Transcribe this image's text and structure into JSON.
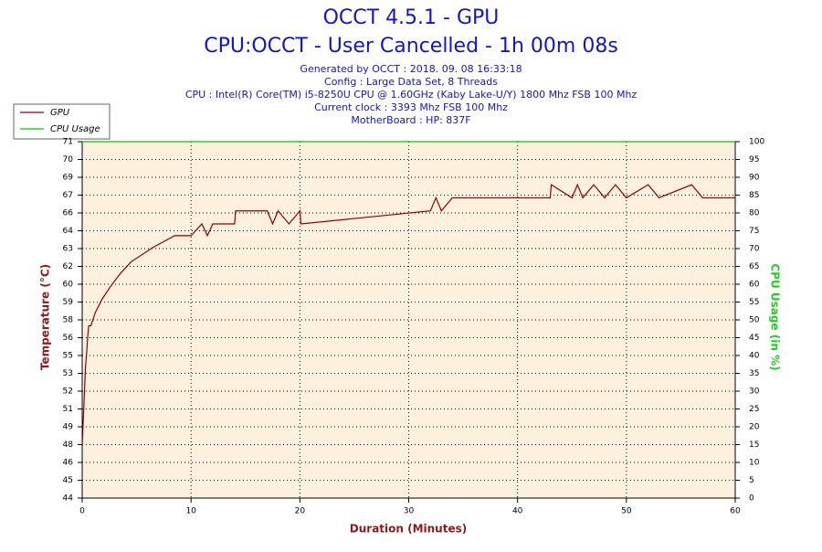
{
  "chart_data": {
    "type": "line",
    "title": "OCCT 4.5.1 - GPU",
    "subtitle": "CPU:OCCT - User Cancelled - 1h 00m 08s",
    "info": [
      "Generated by OCCT : 2018. 09. 08 16:33:18",
      "Config : Large Data Set, 8 Threads",
      "CPU : Intel(R) Core(TM) i5-8250U CPU @ 1.60GHz (Kaby Lake-U/Y) 1800 Mhz FSB 100 Mhz",
      "Current clock : 3393 Mhz FSB 100 Mhz",
      "MotherBoard : HP: 837F"
    ],
    "x_label": "Duration (Minutes)",
    "y_label": "Temperature (°C)",
    "y2_label": "CPU Usage (in %)",
    "xlim": [
      0,
      60
    ],
    "xticks": [
      0,
      10,
      20,
      30,
      40,
      50,
      60
    ],
    "ylim": [
      44,
      71.3
    ],
    "yticks": [
      {
        "value": 44,
        "label": "44"
      },
      {
        "value": 45.365,
        "label": "45"
      },
      {
        "value": 46.73,
        "label": "46"
      },
      {
        "value": 48.095,
        "label": "48"
      },
      {
        "value": 49.46,
        "label": "49"
      },
      {
        "value": 50.825,
        "label": "51"
      },
      {
        "value": 52.19,
        "label": "52"
      },
      {
        "value": 53.555,
        "label": "53"
      },
      {
        "value": 54.92,
        "label": "55"
      },
      {
        "value": 56.285,
        "label": "56"
      },
      {
        "value": 57.65,
        "label": "58"
      },
      {
        "value": 59.015,
        "label": "59"
      },
      {
        "value": 60.38,
        "label": "60"
      },
      {
        "value": 61.745,
        "label": "62"
      },
      {
        "value": 63.11,
        "label": "63"
      },
      {
        "value": 64.475,
        "label": "64"
      },
      {
        "value": 65.84,
        "label": "66"
      },
      {
        "value": 67.205,
        "label": "67"
      },
      {
        "value": 68.57,
        "label": "69"
      },
      {
        "value": 69.935,
        "label": "70"
      },
      {
        "value": 71.3,
        "label": "71"
      }
    ],
    "y2lim": [
      0,
      100
    ],
    "y2ticks": [
      0,
      5,
      10,
      15,
      20,
      25,
      30,
      35,
      40,
      45,
      50,
      55,
      60,
      65,
      70,
      75,
      80,
      85,
      90,
      95,
      100
    ],
    "grid": true,
    "legend": "top-left",
    "series": [
      {
        "name": "GPU",
        "color": "#8b0000",
        "x": [
          0,
          0.1,
          0.2,
          0.3,
          0.4,
          0.5,
          0.6,
          0.8,
          1.2,
          1.8,
          2.6,
          3.5,
          4.5,
          6.5,
          8.5,
          10,
          11,
          11.5,
          12,
          14,
          14.1,
          17,
          17.5,
          18,
          19,
          20,
          20.1,
          32,
          32.5,
          33,
          34,
          35,
          40,
          43,
          43.1,
          45,
          45.5,
          46,
          47,
          48,
          49,
          50,
          52,
          53,
          56,
          57,
          60
        ],
        "values": [
          48,
          50,
          52,
          54,
          55,
          56.3,
          57.2,
          57.2,
          58.2,
          59.2,
          60.2,
          61.2,
          62.1,
          63.2,
          64.1,
          64.1,
          65,
          64.1,
          65,
          65,
          66,
          66,
          65,
          66,
          65,
          66,
          65,
          66,
          67,
          66,
          67,
          67,
          67,
          67,
          68,
          67,
          68,
          67,
          68,
          67,
          68,
          67,
          68,
          67,
          68,
          67,
          67
        ]
      },
      {
        "name": "CPU Usage",
        "color": "#00cc00",
        "axis": "y2",
        "x": [
          0,
          60
        ],
        "values": [
          100,
          100
        ]
      }
    ]
  }
}
